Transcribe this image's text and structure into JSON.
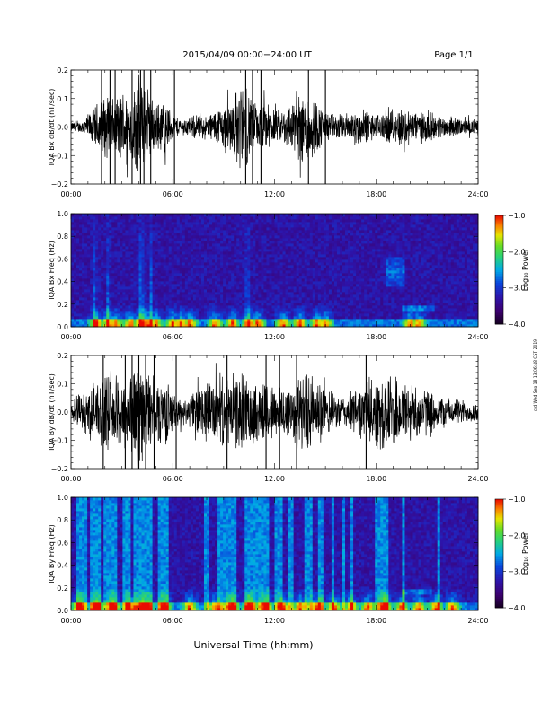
{
  "header": {
    "title": "2015/04/09   00:00−24:00 UT",
    "page": "Page 1/1"
  },
  "side_stamp": "crd Wed Sep 18 13:06:48 CST 2019",
  "xlabel": "Universal Time (hh:mm)",
  "colors": {
    "trace": "#000000",
    "spectrogram_background": "#2a0a6e"
  },
  "chart_data": [
    {
      "type": "line",
      "ylabel": "IQA Bx dB/dt (nT/sec)",
      "xlim_hours": [
        0,
        24
      ],
      "xticks": [
        "00:00",
        "06:00",
        "12:00",
        "18:00",
        "24:00"
      ],
      "ylim": [
        -0.2,
        0.2
      ],
      "yticks": [
        "−0.2",
        "−0.1",
        "0.0",
        "0.1",
        "0.2"
      ],
      "amplitude_envelope": {
        "hours": [
          0,
          0.5,
          1.0,
          1.5,
          2.0,
          2.5,
          3.0,
          3.5,
          4.0,
          4.5,
          5.0,
          5.5,
          6.0,
          6.5,
          7.0,
          7.5,
          8.0,
          8.5,
          9.0,
          9.5,
          10.0,
          10.5,
          11.0,
          11.5,
          12.0,
          12.5,
          13.0,
          13.5,
          14.0,
          14.5,
          15.0,
          15.5,
          16.0,
          16.5,
          17.0,
          17.5,
          18.0,
          18.5,
          19.0,
          19.5,
          20.0,
          20.5,
          21.0,
          21.5,
          22.0,
          22.5,
          23.0,
          23.5,
          24.0
        ],
        "values": [
          0.02,
          0.02,
          0.05,
          0.09,
          0.12,
          0.11,
          0.15,
          0.12,
          0.2,
          0.14,
          0.09,
          0.11,
          0.05,
          0.03,
          0.04,
          0.05,
          0.04,
          0.07,
          0.09,
          0.12,
          0.17,
          0.14,
          0.08,
          0.1,
          0.06,
          0.07,
          0.1,
          0.13,
          0.16,
          0.1,
          0.06,
          0.05,
          0.05,
          0.06,
          0.07,
          0.06,
          0.05,
          0.06,
          0.06,
          0.08,
          0.07,
          0.06,
          0.06,
          0.05,
          0.04,
          0.04,
          0.03,
          0.03,
          0.03
        ]
      },
      "saturated_spikes_hours": [
        1.8,
        2.3,
        2.6,
        3.6,
        4.1,
        4.3,
        4.7,
        6.1,
        10.3,
        10.7,
        11.2,
        14.0,
        15.0
      ]
    },
    {
      "type": "heatmap",
      "ylabel": "IQA Bx Freq (Hz)",
      "xlim_hours": [
        0,
        24
      ],
      "xticks": [
        "00:00",
        "06:00",
        "12:00",
        "18:00",
        "24:00"
      ],
      "ylim": [
        0,
        1.0
      ],
      "yticks": [
        "0.0",
        "0.2",
        "0.4",
        "0.6",
        "0.8",
        "1.0"
      ],
      "colorbar": {
        "label": "Log₁₀ Power",
        "range": [
          -4.0,
          -1.0
        ],
        "ticks": [
          "−1.0",
          "−2.0",
          "−3.0",
          "−4.0"
        ]
      },
      "low_freq_activity_hours": [
        1.5,
        2.2,
        2.6,
        3.5,
        4.1,
        4.3,
        4.6,
        5.0,
        6.0,
        6.5,
        7.0,
        8.5,
        9.5,
        10.5,
        11.0,
        12.5,
        13.5,
        14.5,
        15.0,
        20.0,
        20.5
      ],
      "vertical_streaks_hours": [
        1.4,
        2.2,
        4.1,
        4.3,
        4.7,
        10.4
      ],
      "band_features": [
        {
          "start_hours": 18.6,
          "end_hours": 19.6,
          "freq_start": 0.35,
          "freq_end": 0.62
        },
        {
          "start_hours": 19.5,
          "end_hours": 21.5,
          "freq_start": 0.14,
          "freq_end": 0.2
        }
      ]
    },
    {
      "type": "line",
      "ylabel": "IQA By dB/dt (nT/sec)",
      "xlim_hours": [
        0,
        24
      ],
      "xticks": [
        "00:00",
        "06:00",
        "12:00",
        "18:00",
        "24:00"
      ],
      "ylim": [
        -0.2,
        0.2
      ],
      "yticks": [
        "−0.2",
        "−0.1",
        "0.0",
        "0.1",
        "0.2"
      ],
      "amplitude_envelope": {
        "hours": [
          0,
          0.5,
          1.0,
          1.5,
          2.0,
          2.5,
          3.0,
          3.5,
          4.0,
          4.5,
          5.0,
          5.5,
          6.0,
          6.5,
          7.0,
          7.5,
          8.0,
          8.5,
          9.0,
          9.5,
          10.0,
          10.5,
          11.0,
          11.5,
          12.0,
          12.5,
          13.0,
          13.5,
          14.0,
          14.5,
          15.0,
          15.5,
          16.0,
          16.5,
          17.0,
          17.5,
          18.0,
          18.5,
          19.0,
          19.5,
          20.0,
          20.5,
          21.0,
          21.5,
          22.0,
          22.5,
          23.0,
          23.5,
          24.0
        ],
        "values": [
          0.05,
          0.07,
          0.1,
          0.12,
          0.14,
          0.13,
          0.15,
          0.16,
          0.2,
          0.16,
          0.12,
          0.14,
          0.07,
          0.05,
          0.06,
          0.1,
          0.12,
          0.12,
          0.13,
          0.14,
          0.15,
          0.13,
          0.12,
          0.13,
          0.1,
          0.11,
          0.13,
          0.14,
          0.16,
          0.12,
          0.1,
          0.07,
          0.06,
          0.08,
          0.1,
          0.12,
          0.14,
          0.16,
          0.14,
          0.12,
          0.12,
          0.1,
          0.09,
          0.07,
          0.06,
          0.05,
          0.05,
          0.04,
          0.04
        ]
      },
      "saturated_spikes_hours": [
        1.9,
        3.2,
        3.6,
        4.0,
        4.4,
        4.9,
        6.2,
        9.2,
        11.5,
        12.3,
        13.3,
        17.4
      ]
    },
    {
      "type": "heatmap",
      "ylabel": "IQA By Freq (Hz)",
      "xlim_hours": [
        0,
        24
      ],
      "xticks": [
        "00:00",
        "06:00",
        "12:00",
        "18:00",
        "24:00"
      ],
      "ylim": [
        0,
        1.0
      ],
      "yticks": [
        "0.0",
        "0.2",
        "0.4",
        "0.6",
        "0.8",
        "1.0"
      ],
      "colorbar": {
        "label": "Log₁₀ Power",
        "range": [
          -4.0,
          -1.0
        ],
        "ticks": [
          "−1.0",
          "−2.0",
          "−3.0",
          "−4.0"
        ]
      },
      "broadband_intervals_hours": [
        [
          0.3,
          0.9
        ],
        [
          1.1,
          1.8
        ],
        [
          2.0,
          2.7
        ],
        [
          3.0,
          3.5
        ],
        [
          3.7,
          4.8
        ],
        [
          5.2,
          5.8
        ],
        [
          7.9,
          8.1
        ],
        [
          8.6,
          9.8
        ],
        [
          10.2,
          11.6
        ],
        [
          12.0,
          12.5
        ],
        [
          12.8,
          13.2
        ],
        [
          13.8,
          14.3
        ],
        [
          14.6,
          14.9
        ],
        [
          15.3,
          15.6
        ],
        [
          16.0,
          16.1
        ],
        [
          16.5,
          16.7
        ],
        [
          17.4,
          17.5
        ],
        [
          17.9,
          18.7
        ],
        [
          19.5,
          19.7
        ],
        [
          20.6,
          20.7
        ],
        [
          20.9,
          21.0
        ],
        [
          21.6,
          21.8
        ],
        [
          23.0,
          23.1
        ]
      ],
      "low_freq_activity_hours": [
        0.5,
        1.5,
        2.5,
        3.5,
        4.2,
        4.5,
        5.5,
        7.0,
        8.5,
        9.5,
        10.5,
        11.5,
        12.5,
        13.5,
        14.5,
        15.5,
        16.5,
        17.5,
        18.5,
        19.5,
        20.5,
        21.5,
        22.5
      ],
      "band_features": [
        {
          "start_hours": 19.5,
          "end_hours": 21.3,
          "freq_start": 0.14,
          "freq_end": 0.2
        }
      ]
    }
  ]
}
